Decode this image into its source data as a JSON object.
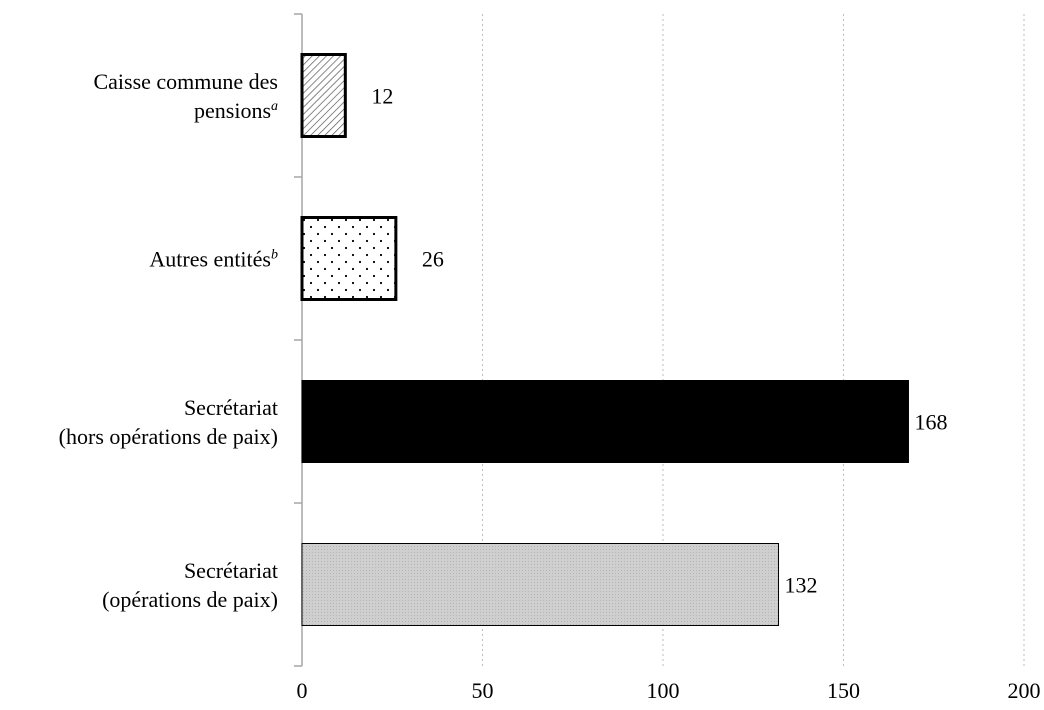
{
  "chart_data": {
    "type": "bar",
    "orientation": "horizontal",
    "title": "",
    "xlabel": "",
    "ylabel": "",
    "xlim": [
      0,
      200
    ],
    "x_ticks": [
      0,
      50,
      100,
      150,
      200
    ],
    "x_tick_labels": [
      "0",
      "50",
      "100",
      "150",
      "200"
    ],
    "grid": "vertical dotted gridlines",
    "legend": "none",
    "categories": [
      {
        "lines": [
          "Caisse commune des",
          "pensions"
        ],
        "sup": "a",
        "value": 12,
        "value_label": "12",
        "pattern": "diagonal-hatch"
      },
      {
        "lines": [
          "Autres entités"
        ],
        "sup": "b",
        "value": 26,
        "value_label": "26",
        "pattern": "dots"
      },
      {
        "lines": [
          "Secrétariat",
          "(hors opérations de paix)"
        ],
        "sup": "",
        "value": 168,
        "value_label": "168",
        "pattern": "solid-black"
      },
      {
        "lines": [
          "Secrétariat",
          "(opérations de paix)"
        ],
        "sup": "",
        "value": 132,
        "value_label": "132",
        "pattern": "gray"
      }
    ],
    "colors": {
      "bar_outline": "#000000",
      "solid_black": "#000000",
      "gray_fill": "#c8c8c8",
      "hatch": "#555555",
      "grid": "#bdbdbd",
      "axis": "#a6a6a6"
    }
  }
}
